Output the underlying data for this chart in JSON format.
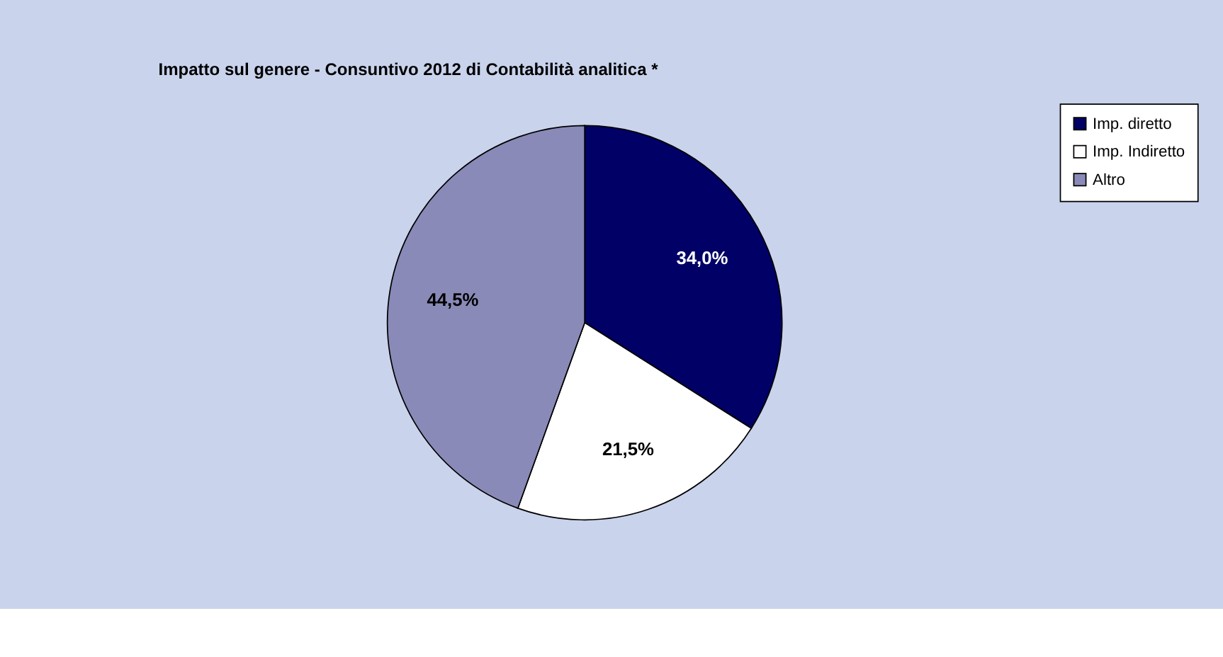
{
  "chart_data": {
    "type": "pie",
    "title": "Impatto sul genere -  Consuntivo 2012 di Contabilità analitica *",
    "categories": [
      "Imp. diretto",
      "Imp. Indiretto",
      "Altro"
    ],
    "values": [
      34.0,
      21.5,
      44.5
    ],
    "colors": [
      "#000066",
      "#ffffff",
      "#8a8ab8"
    ],
    "value_labels": [
      "34,0%",
      "21,5%",
      "44,5%"
    ],
    "legend": "right"
  }
}
